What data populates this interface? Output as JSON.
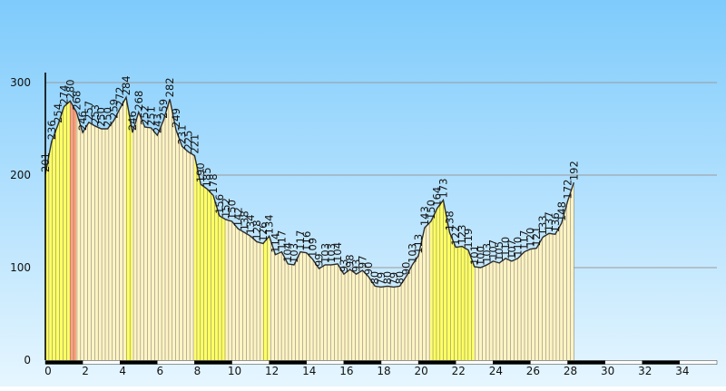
{
  "chart_data": {
    "type": "area",
    "title": "",
    "xlabel": "",
    "ylabel": "",
    "xlim": [
      0,
      36
    ],
    "ylim": [
      0,
      300
    ],
    "y_ticks": [
      0,
      100,
      200,
      300
    ],
    "x_ticks": [
      0,
      2,
      4,
      6,
      8,
      10,
      12,
      14,
      16,
      18,
      20,
      22,
      24,
      26,
      28,
      30,
      32,
      34
    ],
    "grid": "horizontal",
    "colors": {
      "background_top": "#7ecbfc",
      "background_bottom": "#e6f6ff",
      "fill_default": "#fff4c4",
      "fill_steep": "#ffff66",
      "fill_max": "#ffa37d",
      "outline": "#2c2c2c",
      "axis_bar": "#000000"
    },
    "series": [
      {
        "points": [
          {
            "x": 0.0,
            "y": 201
          },
          {
            "x": 0.33,
            "y": 236
          },
          {
            "x": 0.67,
            "y": 254
          },
          {
            "x": 1.0,
            "y": 274
          },
          {
            "x": 1.33,
            "y": 280
          },
          {
            "x": 1.67,
            "y": 268
          },
          {
            "x": 2.0,
            "y": 246
          },
          {
            "x": 2.33,
            "y": 257
          },
          {
            "x": 2.67,
            "y": 253
          },
          {
            "x": 3.0,
            "y": 250
          },
          {
            "x": 3.33,
            "y": 250
          },
          {
            "x": 3.67,
            "y": 259
          },
          {
            "x": 4.0,
            "y": 272
          },
          {
            "x": 4.33,
            "y": 284
          },
          {
            "x": 4.67,
            "y": 246
          },
          {
            "x": 5.0,
            "y": 268
          },
          {
            "x": 5.33,
            "y": 252
          },
          {
            "x": 5.67,
            "y": 251
          },
          {
            "x": 6.0,
            "y": 243
          },
          {
            "x": 6.33,
            "y": 259
          },
          {
            "x": 6.67,
            "y": 282
          },
          {
            "x": 7.0,
            "y": 249
          },
          {
            "x": 7.33,
            "y": 231
          },
          {
            "x": 7.67,
            "y": 225
          },
          {
            "x": 8.0,
            "y": 221
          },
          {
            "x": 8.33,
            "y": 190
          },
          {
            "x": 8.67,
            "y": 185
          },
          {
            "x": 9.0,
            "y": 178
          },
          {
            "x": 9.33,
            "y": 156
          },
          {
            "x": 9.67,
            "y": 152
          },
          {
            "x": 10.0,
            "y": 150
          },
          {
            "x": 10.33,
            "y": 142
          },
          {
            "x": 10.67,
            "y": 138
          },
          {
            "x": 11.0,
            "y": 134
          },
          {
            "x": 11.33,
            "y": 128
          },
          {
            "x": 11.67,
            "y": 126
          },
          {
            "x": 12.0,
            "y": 134
          },
          {
            "x": 12.33,
            "y": 114
          },
          {
            "x": 12.67,
            "y": 117
          },
          {
            "x": 13.0,
            "y": 104
          },
          {
            "x": 13.33,
            "y": 103
          },
          {
            "x": 13.67,
            "y": 117
          },
          {
            "x": 14.0,
            "y": 116
          },
          {
            "x": 14.33,
            "y": 109
          },
          {
            "x": 14.67,
            "y": 99
          },
          {
            "x": 15.0,
            "y": 103
          },
          {
            "x": 15.33,
            "y": 103
          },
          {
            "x": 15.67,
            "y": 104
          },
          {
            "x": 16.0,
            "y": 93
          },
          {
            "x": 16.33,
            "y": 98
          },
          {
            "x": 16.67,
            "y": 93
          },
          {
            "x": 17.0,
            "y": 97
          },
          {
            "x": 17.33,
            "y": 90
          },
          {
            "x": 17.67,
            "y": 80
          },
          {
            "x": 18.0,
            "y": 79
          },
          {
            "x": 18.33,
            "y": 80
          },
          {
            "x": 18.67,
            "y": 79
          },
          {
            "x": 19.0,
            "y": 80
          },
          {
            "x": 19.33,
            "y": 90
          },
          {
            "x": 19.67,
            "y": 103
          },
          {
            "x": 20.0,
            "y": 113
          },
          {
            "x": 20.33,
            "y": 143
          },
          {
            "x": 20.67,
            "y": 150
          },
          {
            "x": 21.0,
            "y": 164
          },
          {
            "x": 21.33,
            "y": 173
          },
          {
            "x": 21.67,
            "y": 138
          },
          {
            "x": 22.0,
            "y": 122
          },
          {
            "x": 22.33,
            "y": 123
          },
          {
            "x": 22.67,
            "y": 119
          },
          {
            "x": 23.0,
            "y": 101
          },
          {
            "x": 23.33,
            "y": 100
          },
          {
            "x": 23.67,
            "y": 103
          },
          {
            "x": 24.0,
            "y": 107
          },
          {
            "x": 24.33,
            "y": 105
          },
          {
            "x": 24.67,
            "y": 110
          },
          {
            "x": 25.0,
            "y": 107
          },
          {
            "x": 25.33,
            "y": 110
          },
          {
            "x": 25.67,
            "y": 117
          },
          {
            "x": 26.0,
            "y": 120
          },
          {
            "x": 26.33,
            "y": 121
          },
          {
            "x": 26.67,
            "y": 133
          },
          {
            "x": 27.0,
            "y": 137
          },
          {
            "x": 27.33,
            "y": 136
          },
          {
            "x": 27.67,
            "y": 148
          },
          {
            "x": 28.0,
            "y": 172
          },
          {
            "x": 28.33,
            "y": 192
          }
        ]
      }
    ],
    "highlight": {
      "steep_segments": [
        0,
        1,
        2,
        3,
        13,
        24,
        25,
        26,
        27,
        28,
        35,
        62,
        63,
        64,
        65,
        66,
        67,
        68,
        85,
        86,
        87
      ],
      "max_segment": 4
    }
  }
}
